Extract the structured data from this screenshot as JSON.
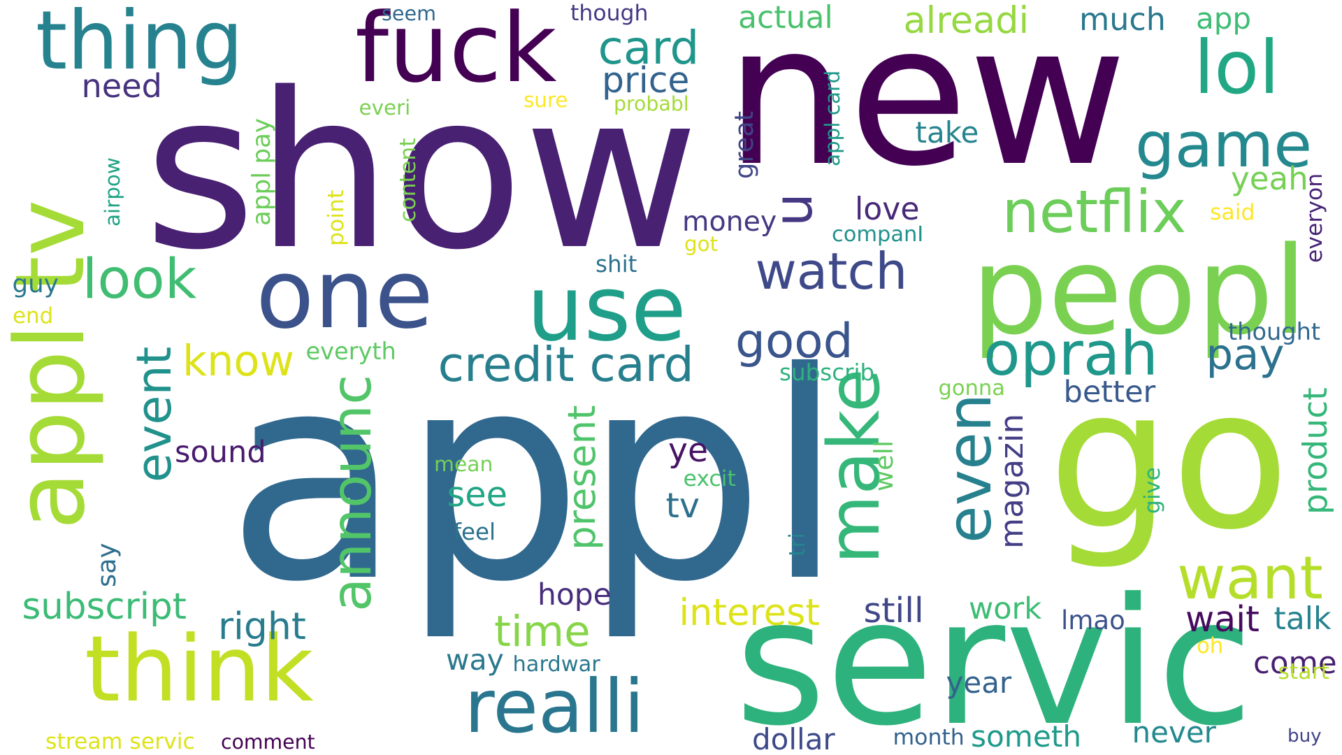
{
  "words": [
    {
      "text": "appl",
      "color": "#31688e",
      "rotated": false
    },
    {
      "text": "show",
      "color": "#482173",
      "rotated": false
    },
    {
      "text": "new",
      "color": "#440154",
      "rotated": false
    },
    {
      "text": "go",
      "color": "#a5db36",
      "rotated": false
    },
    {
      "text": "servic",
      "color": "#2db27d",
      "rotated": false
    },
    {
      "text": "peopl",
      "color": "#7ad151",
      "rotated": false
    },
    {
      "text": "one",
      "color": "#3b528b",
      "rotated": false
    },
    {
      "text": "use",
      "color": "#1f9e89",
      "rotated": false
    },
    {
      "text": "think",
      "color": "#c2df23",
      "rotated": false
    },
    {
      "text": "fuck",
      "color": "#440154",
      "rotated": false
    },
    {
      "text": "thing",
      "color": "#26828e",
      "rotated": false
    },
    {
      "text": "appl tv",
      "color": "#a5db36",
      "rotated": true
    },
    {
      "text": "realli",
      "color": "#2a768e",
      "rotated": false
    },
    {
      "text": "netflix",
      "color": "#6ccd5a",
      "rotated": false
    },
    {
      "text": "lol",
      "color": "#22a785",
      "rotated": false
    },
    {
      "text": "game",
      "color": "#23898e",
      "rotated": false
    },
    {
      "text": "oprah",
      "color": "#1f978b",
      "rotated": false
    },
    {
      "text": "watch",
      "color": "#3e4989",
      "rotated": false
    },
    {
      "text": "make",
      "color": "#35b779",
      "rotated": true
    },
    {
      "text": "even",
      "color": "#27808e",
      "rotated": true
    },
    {
      "text": "want",
      "color": "#b5de2b",
      "rotated": false
    },
    {
      "text": "credit card",
      "color": "#277f8e",
      "rotated": false
    },
    {
      "text": "look",
      "color": "#40bd72",
      "rotated": false
    },
    {
      "text": "event",
      "color": "#21918c",
      "rotated": true
    },
    {
      "text": "announc",
      "color": "#52c569",
      "rotated": true
    },
    {
      "text": "card",
      "color": "#1f958b",
      "rotated": false
    },
    {
      "text": "good",
      "color": "#3a548c",
      "rotated": false
    },
    {
      "text": "u",
      "color": "#453781",
      "rotated": true
    },
    {
      "text": "know",
      "color": "#dde318",
      "rotated": false
    },
    {
      "text": "time",
      "color": "#86d549",
      "rotated": false
    },
    {
      "text": "pay",
      "color": "#2c728e",
      "rotated": false
    },
    {
      "text": "actual",
      "color": "#4ac16d",
      "rotated": false
    },
    {
      "text": "alreadi",
      "color": "#95d840",
      "rotated": false
    },
    {
      "text": "much",
      "color": "#29788e",
      "rotated": false
    },
    {
      "text": "price",
      "color": "#33638d",
      "rotated": false
    },
    {
      "text": "interest",
      "color": "#dde318",
      "rotated": false
    },
    {
      "text": "still",
      "color": "#3f4788",
      "rotated": false
    },
    {
      "text": "present",
      "color": "#50c46a",
      "rotated": true
    },
    {
      "text": "subscript",
      "color": "#3bbb75",
      "rotated": false
    },
    {
      "text": "right",
      "color": "#287c8e",
      "rotated": false
    },
    {
      "text": "need",
      "color": "#46327e",
      "rotated": false
    },
    {
      "text": "app",
      "color": "#3dbc74",
      "rotated": false
    },
    {
      "text": "yeah",
      "color": "#75d054",
      "rotated": false
    },
    {
      "text": "see",
      "color": "#21a685",
      "rotated": false
    },
    {
      "text": "tv",
      "color": "#2d708e",
      "rotated": false
    },
    {
      "text": "ye",
      "color": "#471365",
      "rotated": false
    },
    {
      "text": "love",
      "color": "#482878",
      "rotated": false
    },
    {
      "text": "money",
      "color": "#453882",
      "rotated": false
    },
    {
      "text": "take",
      "color": "#25848e",
      "rotated": false
    },
    {
      "text": "come",
      "color": "#482071",
      "rotated": false
    },
    {
      "text": "wait",
      "color": "#460b5e",
      "rotated": false
    },
    {
      "text": "better",
      "color": "#38598c",
      "rotated": false
    },
    {
      "text": "sound",
      "color": "#481b6d",
      "rotated": false
    },
    {
      "text": "hope",
      "color": "#472d7b",
      "rotated": false
    },
    {
      "text": "way",
      "color": "#2a788e",
      "rotated": false
    },
    {
      "text": "work",
      "color": "#3dbc74",
      "rotated": false
    },
    {
      "text": "talk",
      "color": "#26828e",
      "rotated": false
    },
    {
      "text": "year",
      "color": "#33628d",
      "rotated": false
    },
    {
      "text": "dollar",
      "color": "#3e4a89",
      "rotated": false
    },
    {
      "text": "never",
      "color": "#23898e",
      "rotated": false
    },
    {
      "text": "lmao",
      "color": "#3b528b",
      "rotated": false
    },
    {
      "text": "someth",
      "color": "#1f9a8a",
      "rotated": false
    },
    {
      "text": "magazin",
      "color": "#433e85",
      "rotated": true
    },
    {
      "text": "product",
      "color": "#35b779",
      "rotated": true
    },
    {
      "text": "well",
      "color": "#5ec962",
      "rotated": true
    },
    {
      "text": "great",
      "color": "#414487",
      "rotated": true
    },
    {
      "text": "appl pay",
      "color": "#6ccd5a",
      "rotated": true
    },
    {
      "text": "appl card",
      "color": "#1f9a8a",
      "rotated": true
    },
    {
      "text": "airpow",
      "color": "#20a386",
      "rotated": true
    },
    {
      "text": "point",
      "color": "#dde318",
      "rotated": true
    },
    {
      "text": "content",
      "color": "#7ad151",
      "rotated": true
    },
    {
      "text": "everyon",
      "color": "#482475",
      "rotated": true
    },
    {
      "text": "say",
      "color": "#2e6e8e",
      "rotated": true
    },
    {
      "text": "give",
      "color": "#2db27d",
      "rotated": true
    },
    {
      "text": "tri",
      "color": "#25848e",
      "rotated": true
    },
    {
      "text": "guy",
      "color": "#2a788e",
      "rotated": false
    },
    {
      "text": "end",
      "color": "#dde318",
      "rotated": false
    },
    {
      "text": "everyth",
      "color": "#5ec962",
      "rotated": false
    },
    {
      "text": "companI",
      "color": "#21918c",
      "rotated": false
    },
    {
      "text": "shit",
      "color": "#2c718e",
      "rotated": false
    },
    {
      "text": "got",
      "color": "#dde318",
      "rotated": false
    },
    {
      "text": "said",
      "color": "#fde725",
      "rotated": false
    },
    {
      "text": "thought",
      "color": "#31688e",
      "rotated": false
    },
    {
      "text": "subscrib",
      "color": "#2db27d",
      "rotated": false
    },
    {
      "text": "gonna",
      "color": "#7ad151",
      "rotated": false
    },
    {
      "text": "mean",
      "color": "#75d054",
      "rotated": false
    },
    {
      "text": "excit",
      "color": "#4ac16d",
      "rotated": false
    },
    {
      "text": "feel",
      "color": "#2c728e",
      "rotated": false
    },
    {
      "text": "hardwar",
      "color": "#2a788e",
      "rotated": false
    },
    {
      "text": "oh",
      "color": "#fde725",
      "rotated": false
    },
    {
      "text": "start",
      "color": "#b5de2b",
      "rotated": false
    },
    {
      "text": "buy",
      "color": "#414487",
      "rotated": false
    },
    {
      "text": "month",
      "color": "#33628d",
      "rotated": false
    },
    {
      "text": "comment",
      "color": "#440154",
      "rotated": false
    },
    {
      "text": "stream servic",
      "color": "#dde318",
      "rotated": false
    },
    {
      "text": "seem",
      "color": "#31688e",
      "rotated": false
    },
    {
      "text": "though",
      "color": "#443983",
      "rotated": false
    },
    {
      "text": "everi",
      "color": "#7ad151",
      "rotated": false
    },
    {
      "text": "sure",
      "color": "#fde725",
      "rotated": false
    },
    {
      "text": "probabl",
      "color": "#a5db36",
      "rotated": false
    }
  ]
}
